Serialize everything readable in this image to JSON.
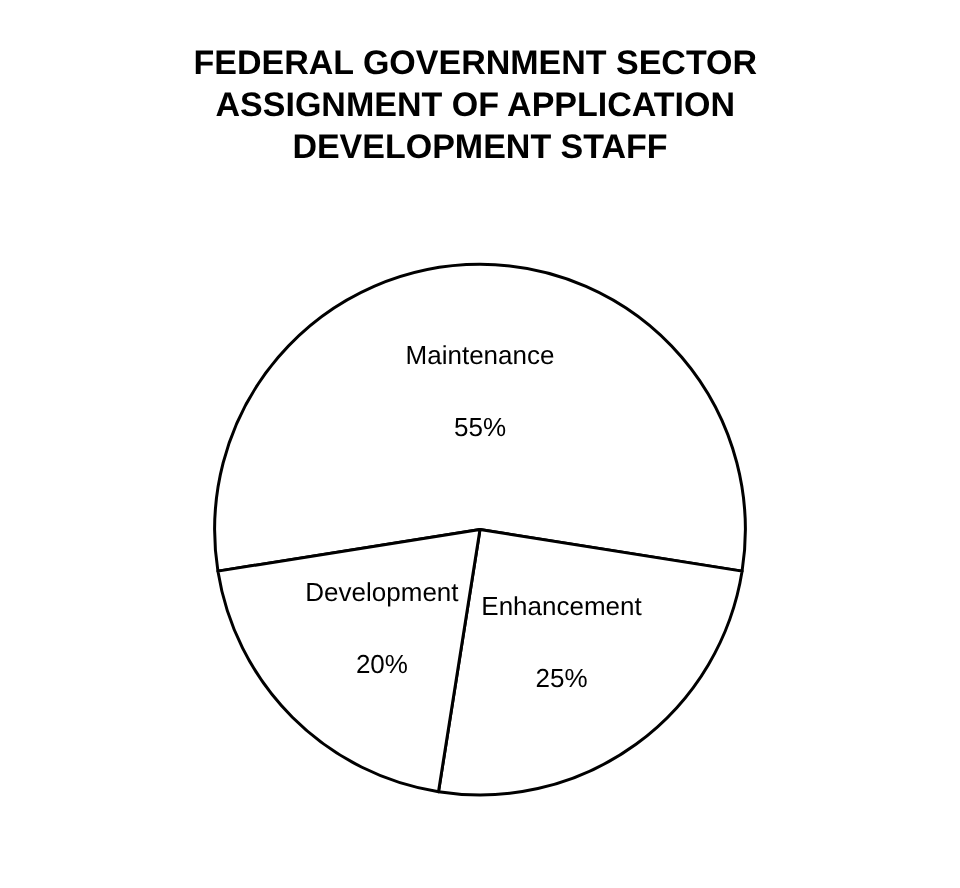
{
  "chart_data": {
    "type": "pie",
    "title": "FEDERAL GOVERNMENT SECTOR ASSIGNMENT OF APPLICATION DEVELOPMENT STAFF",
    "categories": [
      "Maintenance",
      "Enhancement",
      "Development"
    ],
    "values": [
      55,
      25,
      20
    ],
    "colors": [
      "#ffffff",
      "#ffffff",
      "#ffffff"
    ],
    "value_labels": [
      "55%",
      "25%",
      "20%"
    ],
    "legend": false
  }
}
